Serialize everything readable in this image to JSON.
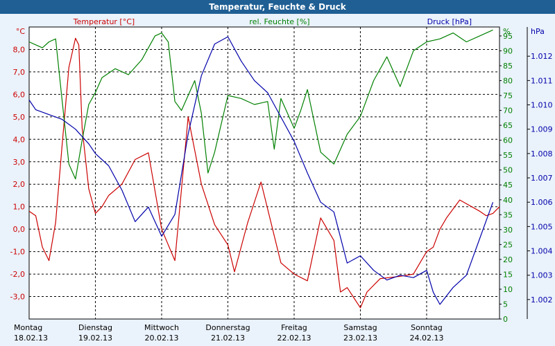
{
  "window": {
    "title": "Temperatur, Feuchte & Druck"
  },
  "colors": {
    "temperature": "#cc0000",
    "humidity": "#008000",
    "pressure": "#0000aa",
    "titlebar": "#1f5f94"
  },
  "chart_data": {
    "type": "line",
    "title": "Temperatur, Feuchte & Druck",
    "grid": true,
    "x_axis": {
      "days": [
        {
          "day": "Montag",
          "date": "18.02.13"
        },
        {
          "day": "Dienstag",
          "date": "19.02.13"
        },
        {
          "day": "Mittwoch",
          "date": "20.02.13"
        },
        {
          "day": "Donnerstag",
          "date": "21.02.13"
        },
        {
          "day": "Freitag",
          "date": "22.02.13"
        },
        {
          "day": "Samstag",
          "date": "23.02.13"
        },
        {
          "day": "Sonntag",
          "date": "24.02.13"
        }
      ],
      "range_days": [
        0,
        7.1
      ]
    },
    "axes": {
      "temperature": {
        "label": "Temperatur [°C]",
        "unit_label": "°C",
        "ylim": [
          -4,
          9
        ],
        "ticks": [
          "-3,0",
          "-2,0",
          "-1,0",
          "0,0",
          "1,0",
          "2,0",
          "3,0",
          "4,0",
          "5,0",
          "6,0",
          "7,0",
          "8,0"
        ]
      },
      "humidity": {
        "label": "rel. Feuchte [%]",
        "unit_label": "%",
        "ylim": [
          0,
          98
        ],
        "ticks": [
          "0",
          "5",
          "10",
          "15",
          "20",
          "25",
          "30",
          "35",
          "40",
          "45",
          "50",
          "55",
          "60",
          "65",
          "70",
          "75",
          "80",
          "85",
          "90",
          "95"
        ]
      },
      "pressure": {
        "label": "Druck [hPa]",
        "unit_label": "hPa",
        "ylim": [
          1001.2,
          1013.2
        ],
        "ticks": [
          "1.002",
          "1.003",
          "1.004",
          "1.005",
          "1.006",
          "1.007",
          "1.008",
          "1.009",
          "1.010",
          "1.011",
          "1.012"
        ]
      }
    },
    "series": [
      {
        "name": "Temperatur [°C]",
        "axis": "temperature",
        "x": [
          0,
          0.1,
          0.2,
          0.3,
          0.4,
          0.5,
          0.6,
          0.7,
          0.75,
          0.8,
          0.9,
          1.0,
          1.1,
          1.2,
          1.4,
          1.6,
          1.8,
          2.0,
          2.2,
          2.4,
          2.6,
          2.8,
          3.0,
          3.1,
          3.3,
          3.5,
          3.8,
          4.0,
          4.2,
          4.4,
          4.6,
          4.7,
          4.8,
          5.0,
          5.1,
          5.3,
          5.6,
          5.8,
          5.9,
          6.0,
          6.1,
          6.2,
          6.3,
          6.5,
          6.8,
          6.9,
          7.0,
          7.1
        ],
        "values": [
          0.8,
          0.6,
          -0.8,
          -1.4,
          0.3,
          3.8,
          7.2,
          8.5,
          8.2,
          4.5,
          1.8,
          0.7,
          1.0,
          1.5,
          2.0,
          3.1,
          3.4,
          0.0,
          -1.4,
          5.0,
          2.0,
          0.2,
          -0.7,
          -1.9,
          0.3,
          2.1,
          -1.5,
          -2.0,
          -2.3,
          0.5,
          -0.5,
          -2.8,
          -2.6,
          -3.5,
          -2.8,
          -2.2,
          -2.1,
          -2.0,
          -1.5,
          -1.0,
          -0.8,
          0.0,
          0.5,
          1.3,
          0.8,
          0.6,
          0.7,
          1.0
        ]
      },
      {
        "name": "rel. Feuchte [%]",
        "axis": "humidity",
        "x": [
          0,
          0.1,
          0.2,
          0.3,
          0.4,
          0.5,
          0.6,
          0.7,
          0.8,
          0.9,
          1.0,
          1.1,
          1.3,
          1.5,
          1.7,
          1.9,
          2.0,
          2.1,
          2.2,
          2.3,
          2.5,
          2.6,
          2.7,
          2.8,
          3.0,
          3.2,
          3.4,
          3.6,
          3.7,
          3.8,
          4.0,
          4.1,
          4.2,
          4.4,
          4.6,
          4.8,
          5.0,
          5.2,
          5.4,
          5.6,
          5.8,
          6.0,
          6.2,
          6.4,
          6.6,
          6.8,
          7.0
        ],
        "values": [
          93,
          92,
          91,
          93,
          94,
          73,
          52,
          47,
          60,
          72,
          76,
          81,
          84,
          82,
          87,
          95,
          96,
          93,
          73,
          70,
          80,
          69,
          49,
          56,
          75,
          74,
          72,
          73,
          57,
          74,
          64,
          70,
          77,
          56,
          52,
          62,
          68,
          80,
          88,
          78,
          90,
          93,
          94,
          96,
          93,
          95,
          97
        ]
      },
      {
        "name": "Druck [hPa]",
        "axis": "pressure",
        "x": [
          0,
          0.1,
          0.3,
          0.5,
          0.7,
          0.9,
          1.0,
          1.2,
          1.4,
          1.6,
          1.8,
          2.0,
          2.2,
          2.4,
          2.6,
          2.8,
          3.0,
          3.2,
          3.4,
          3.6,
          3.8,
          4.0,
          4.2,
          4.4,
          4.6,
          4.8,
          5.0,
          5.2,
          5.4,
          5.6,
          5.8,
          6.0,
          6.1,
          6.2,
          6.4,
          6.6,
          6.8,
          7.0
        ],
        "values": [
          1010.2,
          1009.8,
          1009.6,
          1009.4,
          1009.0,
          1008.4,
          1008.0,
          1007.5,
          1006.5,
          1005.2,
          1005.8,
          1004.6,
          1005.5,
          1008.8,
          1011.2,
          1012.5,
          1012.8,
          1011.8,
          1011.0,
          1010.5,
          1009.5,
          1008.5,
          1007.2,
          1006.0,
          1005.6,
          1003.5,
          1003.8,
          1003.2,
          1002.8,
          1003.0,
          1002.9,
          1003.2,
          1002.3,
          1001.8,
          1002.5,
          1003.0,
          1004.5,
          1006.0
        ]
      }
    ]
  }
}
